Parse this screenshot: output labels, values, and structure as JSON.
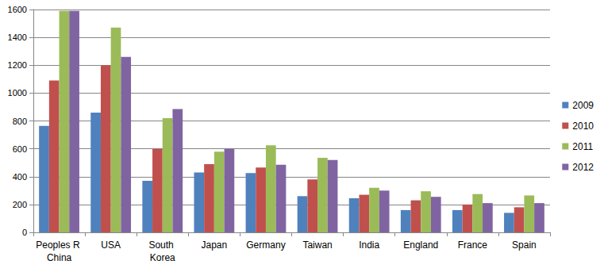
{
  "chart_data": {
    "type": "bar",
    "categories": [
      "Peoples R China",
      "USA",
      "South Korea",
      "Japan",
      "Germany",
      "Taiwan",
      "India",
      "England",
      "France",
      "Spain"
    ],
    "series": [
      {
        "name": "2009",
        "color": "#4F81BD",
        "values": [
          765,
          860,
          370,
          430,
          425,
          260,
          245,
          160,
          160,
          140
        ]
      },
      {
        "name": "2010",
        "color": "#C0504D",
        "values": [
          1090,
          1200,
          600,
          490,
          465,
          380,
          270,
          230,
          200,
          180
        ]
      },
      {
        "name": "2011",
        "color": "#9BBB59",
        "values": [
          1590,
          1470,
          820,
          580,
          625,
          535,
          320,
          295,
          275,
          265
        ]
      },
      {
        "name": "2012",
        "color": "#8064A2",
        "values": [
          1590,
          1260,
          885,
          600,
          485,
          520,
          300,
          255,
          210,
          210
        ]
      }
    ],
    "ylim": [
      0,
      1600
    ],
    "yticks": [
      0,
      200,
      400,
      600,
      800,
      1000,
      1200,
      1400,
      1600
    ],
    "grid": true,
    "legend": "right"
  }
}
